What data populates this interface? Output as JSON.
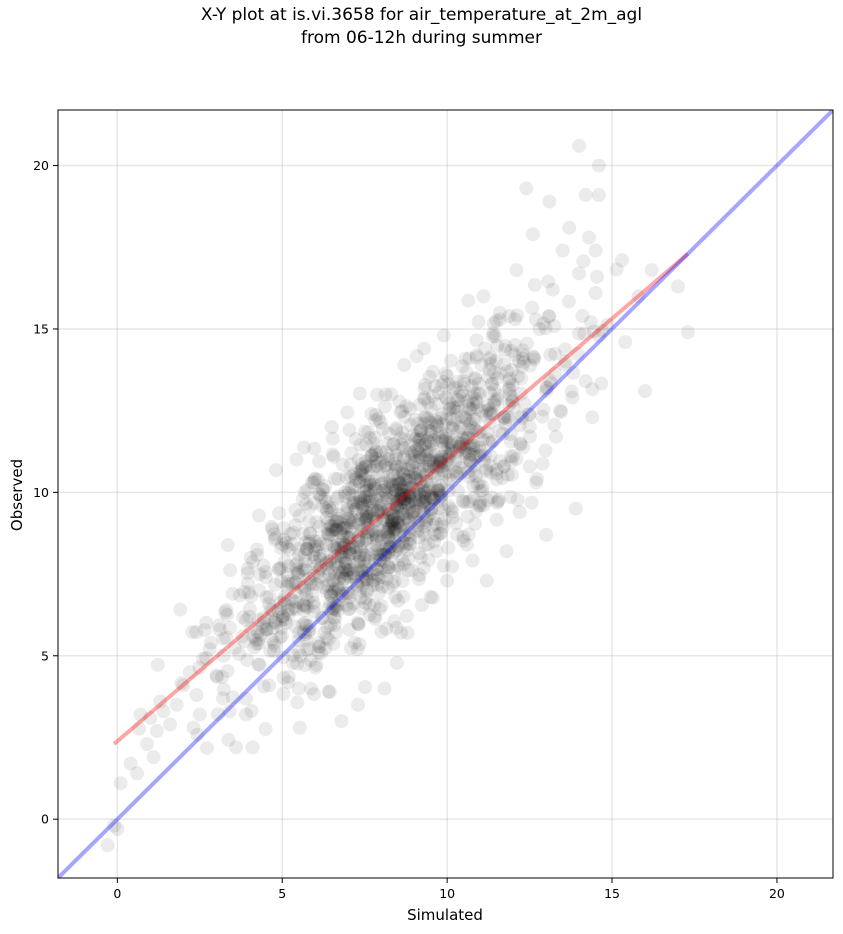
{
  "title_line1": "X-Y plot at is.vi.3658 for air_temperature_at_2m_agl",
  "title_line2": "from 06-12h during summer",
  "chart_data": {
    "type": "scatter",
    "xlabel": "Simulated",
    "ylabel": "Observed",
    "xlim": [
      -1.8,
      21.7
    ],
    "ylim": [
      -1.8,
      21.7
    ],
    "xticks": [
      0,
      5,
      10,
      15,
      20
    ],
    "yticks": [
      0,
      5,
      10,
      15,
      20
    ],
    "grid": true,
    "point_color": "#000000",
    "point_alpha": 0.08,
    "approx_point_count": 1500,
    "series": [
      {
        "type": "scatter",
        "points": [
          [
            -0.3,
            -0.8
          ],
          [
            -0.1,
            -0.2
          ],
          [
            0.0,
            -0.3
          ],
          [
            0.1,
            1.1
          ],
          [
            0.4,
            1.7
          ],
          [
            0.6,
            1.4
          ],
          [
            0.9,
            2.3
          ],
          [
            1.1,
            1.9
          ],
          [
            0.7,
            3.2
          ],
          [
            1.0,
            3.1
          ],
          [
            1.2,
            2.7
          ],
          [
            1.4,
            3.3
          ],
          [
            1.6,
            2.9
          ],
          [
            1.3,
            3.6
          ],
          [
            1.8,
            3.5
          ],
          [
            2.0,
            4.1
          ],
          [
            2.2,
            4.5
          ],
          [
            2.4,
            3.8
          ],
          [
            2.6,
            4.9
          ],
          [
            2.5,
            3.2
          ],
          [
            2.8,
            5.2
          ],
          [
            3.0,
            4.4
          ],
          [
            3.1,
            5.8
          ],
          [
            3.3,
            6.4
          ],
          [
            3.5,
            6.9
          ],
          [
            3.4,
            3.3
          ],
          [
            3.6,
            2.2
          ],
          [
            3.2,
            3.7
          ],
          [
            3.8,
            5.6
          ],
          [
            4.0,
            6.2
          ],
          [
            4.1,
            2.2
          ],
          [
            3.9,
            3.2
          ],
          [
            4.3,
            7.0
          ],
          [
            4.5,
            7.4
          ],
          [
            4.6,
            4.1
          ],
          [
            4.8,
            8.6
          ],
          [
            5.0,
            8.4
          ],
          [
            5.0,
            6.1
          ],
          [
            5.2,
            7.2
          ],
          [
            5.4,
            9.0
          ],
          [
            5.5,
            4.0
          ],
          [
            5.7,
            7.9
          ],
          [
            5.9,
            10.3
          ],
          [
            6.0,
            8.5
          ],
          [
            6.1,
            5.1
          ],
          [
            6.3,
            9.8
          ],
          [
            6.4,
            3.9
          ],
          [
            6.5,
            12.0
          ],
          [
            6.6,
            8.3
          ],
          [
            6.7,
            7.0
          ],
          [
            6.8,
            3.0
          ],
          [
            7.0,
            9.2
          ],
          [
            7.1,
            11.2
          ],
          [
            7.2,
            5.4
          ],
          [
            7.3,
            3.5
          ],
          [
            7.5,
            10.4
          ],
          [
            7.6,
            8.8
          ],
          [
            7.7,
            12.4
          ],
          [
            7.8,
            6.2
          ],
          [
            8.0,
            9.6
          ],
          [
            8.1,
            4.0
          ],
          [
            8.2,
            11.5
          ],
          [
            8.3,
            13.0
          ],
          [
            8.4,
            7.6
          ],
          [
            8.6,
            10.1
          ],
          [
            8.7,
            13.9
          ],
          [
            8.8,
            5.7
          ],
          [
            9.0,
            9.4
          ],
          [
            9.1,
            12.1
          ],
          [
            9.2,
            8.0
          ],
          [
            9.3,
            14.4
          ],
          [
            9.4,
            10.8
          ],
          [
            9.5,
            6.8
          ],
          [
            9.6,
            11.6
          ],
          [
            9.8,
            9.9
          ],
          [
            9.9,
            14.8
          ],
          [
            10.0,
            7.3
          ],
          [
            10.2,
            12.6
          ],
          [
            10.3,
            10.5
          ],
          [
            10.5,
            13.4
          ],
          [
            10.6,
            8.4
          ],
          [
            10.7,
            11.0
          ],
          [
            10.9,
            14.2
          ],
          [
            11.0,
            9.6
          ],
          [
            11.1,
            16.0
          ],
          [
            11.2,
            7.3
          ],
          [
            11.3,
            12.4
          ],
          [
            11.5,
            10.4
          ],
          [
            11.6,
            15.5
          ],
          [
            11.8,
            8.2
          ],
          [
            11.9,
            13.0
          ],
          [
            12.0,
            11.1
          ],
          [
            12.1,
            16.8
          ],
          [
            12.2,
            9.4
          ],
          [
            12.3,
            14.2
          ],
          [
            12.4,
            19.3
          ],
          [
            12.5,
            12.0
          ],
          [
            12.6,
            17.9
          ],
          [
            12.7,
            10.3
          ],
          [
            12.8,
            15.0
          ],
          [
            13.0,
            13.1
          ],
          [
            13.0,
            8.7
          ],
          [
            13.1,
            18.9
          ],
          [
            13.2,
            16.2
          ],
          [
            13.3,
            11.7
          ],
          [
            13.5,
            17.4
          ],
          [
            13.6,
            14.0
          ],
          [
            13.7,
            18.1
          ],
          [
            13.8,
            12.9
          ],
          [
            13.9,
            9.5
          ],
          [
            14.0,
            16.7
          ],
          [
            14.0,
            20.6
          ],
          [
            14.1,
            15.4
          ],
          [
            14.2,
            13.4
          ],
          [
            14.2,
            19.1
          ],
          [
            14.3,
            17.8
          ],
          [
            14.4,
            12.3
          ],
          [
            14.5,
            16.1
          ],
          [
            14.6,
            20.0
          ],
          [
            14.6,
            14.8
          ],
          [
            14.6,
            19.1
          ],
          [
            14.5,
            17.4
          ],
          [
            15.4,
            14.6
          ],
          [
            15.3,
            17.1
          ],
          [
            15.8,
            16.0
          ],
          [
            16.0,
            13.1
          ],
          [
            16.2,
            16.8
          ],
          [
            17.0,
            16.3
          ],
          [
            17.3,
            14.9
          ]
        ]
      },
      {
        "type": "line",
        "name": "",
        "color": "#ff0000",
        "alpha": 0.35,
        "x": [
          -0.1,
          17.3
        ],
        "y": [
          2.3,
          17.3
        ]
      },
      {
        "type": "line",
        "name": "",
        "color": "#0000ff",
        "alpha": 0.35,
        "x": [
          -1.8,
          21.7
        ],
        "y": [
          -1.8,
          21.7
        ]
      }
    ]
  }
}
